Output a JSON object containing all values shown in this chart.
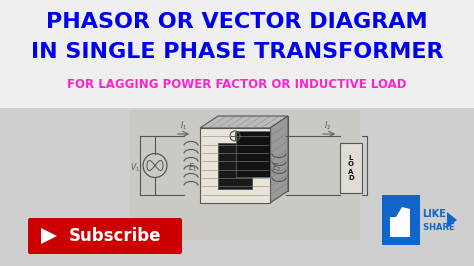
{
  "title_line1": "PHASOR OR VECTOR DIAGRAM",
  "title_line2": "IN SINGLE PHASE TRANSFORMER",
  "subtitle": "FOR LAGGING POWER FACTOR OR INDUCTIVE LOAD",
  "title_color": "#0000EE",
  "subtitle_color": "#FF22CC",
  "bg_color": "#D0CFCF",
  "subscribe_text": "Subscribe",
  "subscribe_bg": "#CC0000",
  "subscribe_text_color": "#FFFFFF",
  "like_share_color": "#1166CC",
  "diagram_color": "#555555",
  "diagram_light": "#CCCCCC",
  "diagram_bg": "#E8E4D8"
}
